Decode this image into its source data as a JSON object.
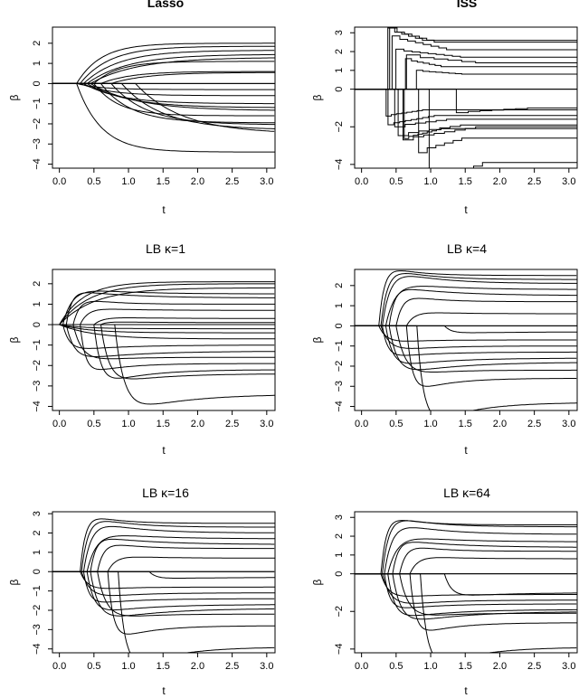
{
  "chart_data": [
    {
      "type": "line",
      "title": "Lasso",
      "title_bold": true,
      "step": false,
      "xlabel": "t",
      "ylabel": "β",
      "xlim": [
        -0.1,
        3.12
      ],
      "ylim": [
        -4.2,
        2.8
      ],
      "xticks": [
        "0.0",
        "0.5",
        "1.0",
        "1.5",
        "2.0",
        "2.5",
        "3.0"
      ],
      "yticks": [
        "2",
        "1",
        "0",
        "−1",
        "−2",
        "−3",
        "−4"
      ],
      "onset": [
        0.25,
        0.3,
        0.35,
        0.4,
        0.45,
        0.5,
        0.6,
        0.75,
        0.9,
        1.1
      ],
      "final_values": [
        2.0,
        1.85,
        1.65,
        1.45,
        1.3,
        1.1,
        0.6,
        0.55,
        0.0,
        0.0,
        -0.3,
        -0.6,
        -1.0,
        -1.2,
        -1.35,
        -1.6,
        -1.95,
        -2.05,
        -2.3,
        -2.5,
        -3.4
      ]
    },
    {
      "type": "line",
      "title": "ISS",
      "title_bold": true,
      "step": true,
      "xlabel": "t",
      "ylabel": "β",
      "xlim": [
        -0.1,
        3.12
      ],
      "ylim": [
        -4.2,
        3.3
      ],
      "xticks": [
        "0.0",
        "0.5",
        "1.0",
        "1.5",
        "2.0",
        "2.5",
        "3.0"
      ],
      "yticks": [
        "3",
        "2",
        "1",
        "0",
        "−2",
        "−4"
      ],
      "onset": [
        0.28,
        0.3,
        0.33,
        0.38,
        0.45,
        0.55,
        0.7,
        0.85,
        1.0,
        1.2
      ],
      "final_values": [
        2.6,
        2.5,
        2.1,
        1.7,
        1.4,
        1.2,
        0.8,
        0.0,
        0.0,
        -1.0,
        -1.1,
        -1.4,
        -1.6,
        -1.9,
        -2.0,
        -2.1,
        -2.6,
        -3.9
      ]
    },
    {
      "type": "line",
      "title": "LB κ=1",
      "title_bold": false,
      "step": false,
      "xlabel": "t",
      "ylabel": "β",
      "xlim": [
        -0.1,
        3.12
      ],
      "ylim": [
        -4.2,
        2.7
      ],
      "xticks": [
        "0.0",
        "0.5",
        "1.0",
        "1.5",
        "2.0",
        "2.5",
        "3.0"
      ],
      "yticks": [
        "2",
        "1",
        "0",
        "−1",
        "−2",
        "−3",
        "−4"
      ],
      "onset": [
        0.0,
        0.0,
        0.0,
        0.05,
        0.1,
        0.2,
        0.3,
        0.5,
        0.6,
        0.8
      ],
      "final_values": [
        2.1,
        2.0,
        1.8,
        1.5,
        1.3,
        1.0,
        0.7,
        0.3,
        0.1,
        0.0,
        -0.2,
        -0.4,
        -0.7,
        -1.0,
        -1.3,
        -1.6,
        -1.9,
        -2.2,
        -2.4,
        -3.4
      ]
    },
    {
      "type": "line",
      "title": "LB κ=4",
      "title_bold": false,
      "step": false,
      "xlabel": "t",
      "ylabel": "β",
      "xlim": [
        -0.1,
        3.12
      ],
      "ylim": [
        -4.2,
        2.8
      ],
      "xticks": [
        "0.0",
        "0.5",
        "1.0",
        "1.5",
        "2.0",
        "2.5",
        "3.0"
      ],
      "yticks": [
        "2",
        "1",
        "0",
        "−1",
        "−2",
        "−3",
        "−4"
      ],
      "onset": [
        0.25,
        0.28,
        0.3,
        0.35,
        0.4,
        0.5,
        0.65,
        0.8,
        1.0,
        1.2
      ],
      "final_values": [
        2.5,
        2.3,
        2.1,
        1.8,
        1.5,
        1.2,
        0.6,
        0.0,
        0.0,
        -0.3,
        -0.7,
        -1.0,
        -1.3,
        -1.6,
        -1.8,
        -2.2,
        -2.6,
        -3.8
      ]
    },
    {
      "type": "line",
      "title": "LB κ=16",
      "title_bold": false,
      "step": false,
      "xlabel": "t",
      "ylabel": "β",
      "xlim": [
        -0.1,
        3.12
      ],
      "ylim": [
        -4.2,
        3.1
      ],
      "xticks": [
        "0.0",
        "0.5",
        "1.0",
        "1.5",
        "2.0",
        "2.5",
        "3.0"
      ],
      "yticks": [
        "3",
        "2",
        "1",
        "0",
        "−1",
        "−2",
        "−3",
        "−4"
      ],
      "onset": [
        0.3,
        0.32,
        0.35,
        0.4,
        0.45,
        0.55,
        0.7,
        0.85,
        1.05,
        1.3
      ],
      "final_values": [
        2.5,
        2.3,
        2.0,
        1.7,
        1.4,
        1.2,
        0.7,
        0.0,
        0.0,
        -0.3,
        -0.8,
        -1.1,
        -1.4,
        -1.7,
        -1.9,
        -2.2,
        -2.8,
        -3.9
      ]
    },
    {
      "type": "line",
      "title": "LB κ=64",
      "title_bold": false,
      "step": false,
      "xlabel": "t",
      "ylabel": "β",
      "xlim": [
        -0.1,
        3.12
      ],
      "ylim": [
        -4.2,
        3.3
      ],
      "xticks": [
        "0.0",
        "0.5",
        "1.0",
        "1.5",
        "2.0",
        "2.5",
        "3.0"
      ],
      "yticks": [
        "3",
        "2",
        "1",
        "0",
        "−2",
        "−4"
      ],
      "onset": [
        0.28,
        0.3,
        0.33,
        0.38,
        0.45,
        0.55,
        0.7,
        0.85,
        1.0,
        1.2
      ],
      "final_values": [
        2.6,
        2.5,
        2.1,
        1.7,
        1.4,
        1.2,
        0.8,
        0.0,
        0.0,
        -1.0,
        -1.1,
        -1.4,
        -1.6,
        -1.9,
        -2.0,
        -2.1,
        -2.6,
        -3.9
      ]
    }
  ]
}
